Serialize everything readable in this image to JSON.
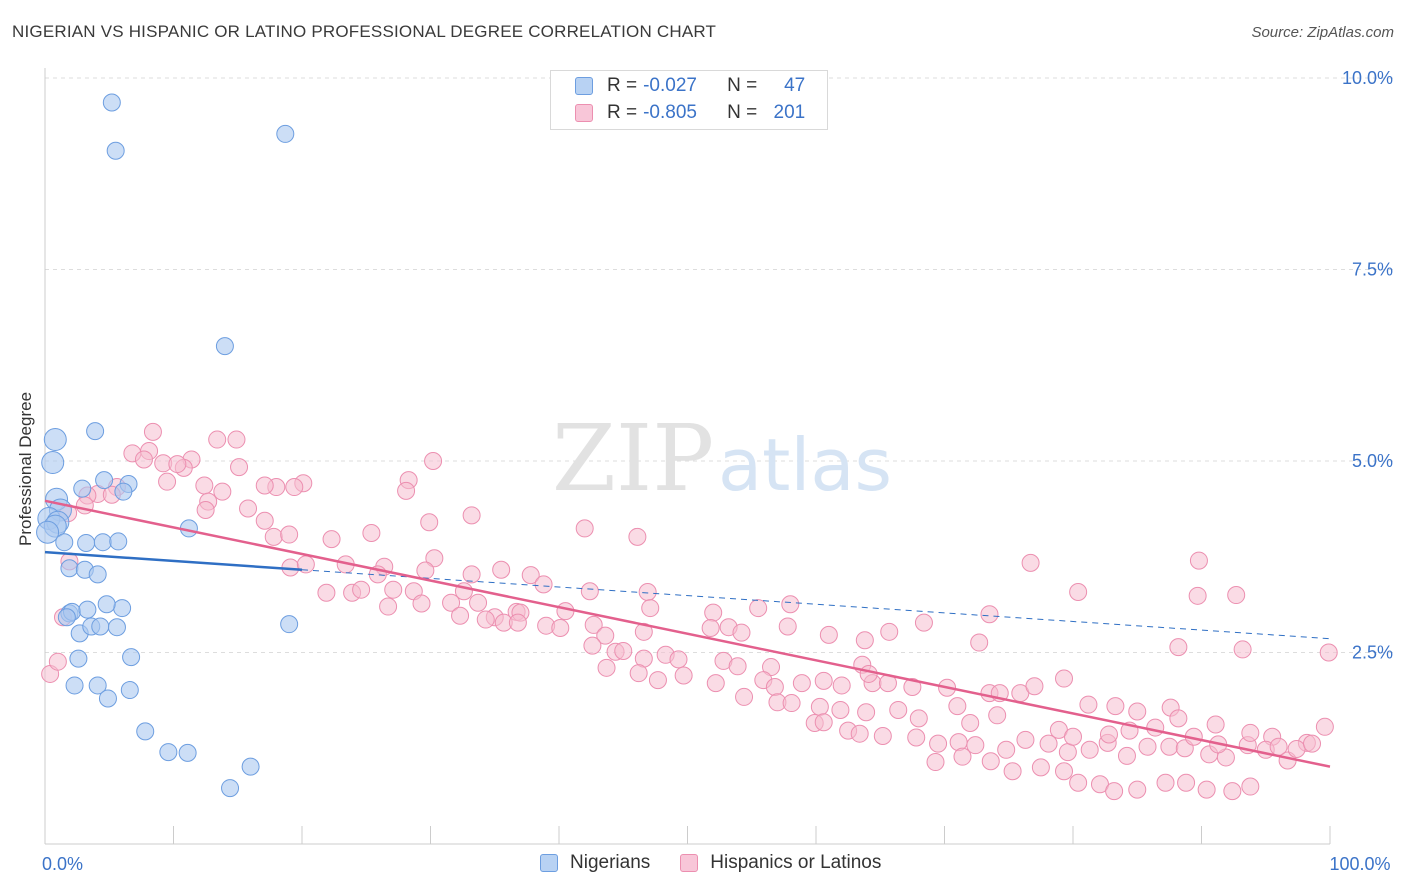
{
  "header": {
    "title": "NIGERIAN VS HISPANIC OR LATINO PROFESSIONAL DEGREE CORRELATION CHART",
    "source": "Source: ZipAtlas.com"
  },
  "watermark": {
    "zip": "ZIP",
    "atlas": "atlas"
  },
  "legend": {
    "rows": [
      {
        "r_label": "R =",
        "r_value": "-0.027",
        "n_label": "N =",
        "n_value": "47"
      },
      {
        "r_label": "R =",
        "r_value": "-0.805",
        "n_label": "N =",
        "n_value": "201"
      }
    ]
  },
  "bottom_legend": {
    "series1": "Nigerians",
    "series2": "Hispanics or Latinos"
  },
  "colors": {
    "blue_fill": "#aac8f0",
    "blue_stroke": "#6d9ee0",
    "blue_line": "#2f6fc4",
    "pink_fill": "#f6bdd0",
    "pink_stroke": "#ec8fb0",
    "pink_line": "#e3608d",
    "axis_text": "#3b73c8",
    "grid": "#dddddd"
  },
  "chart_data": {
    "type": "scatter",
    "title": "NIGERIAN VS HISPANIC OR LATINO PROFESSIONAL DEGREE CORRELATION CHART",
    "xlabel": "",
    "ylabel": "Professional Degree",
    "xlim": [
      0,
      100
    ],
    "ylim": [
      0,
      10
    ],
    "x_tick_labels": {
      "0": "0.0%",
      "100": "100.0%"
    },
    "y_ticks": [
      {
        "value": 2.5,
        "label": "2.5%"
      },
      {
        "value": 5.0,
        "label": "5.0%"
      },
      {
        "value": 7.5,
        "label": "7.5%"
      },
      {
        "value": 10.0,
        "label": "10.0%"
      }
    ],
    "series": [
      {
        "name": "Nigerians",
        "r": -0.027,
        "n": 47,
        "trend": {
          "x0": 0,
          "y0": 3.81,
          "x1": 20,
          "y1": 3.58,
          "dash_x1": 100,
          "dash_y1": 2.68
        },
        "points": [
          [
            5.2,
            9.68
          ],
          [
            5.5,
            9.05
          ],
          [
            18.7,
            9.27
          ],
          [
            14.0,
            6.5
          ],
          [
            3.9,
            5.39
          ],
          [
            0.8,
            5.28
          ],
          [
            0.6,
            4.98
          ],
          [
            4.6,
            4.75
          ],
          [
            6.5,
            4.7
          ],
          [
            0.9,
            4.5
          ],
          [
            2.9,
            4.64
          ],
          [
            6.1,
            4.6
          ],
          [
            1.2,
            4.36
          ],
          [
            0.3,
            4.25
          ],
          [
            1.0,
            4.2
          ],
          [
            0.8,
            4.15
          ],
          [
            11.2,
            4.12
          ],
          [
            0.2,
            4.07
          ],
          [
            1.5,
            3.94
          ],
          [
            3.2,
            3.93
          ],
          [
            4.5,
            3.94
          ],
          [
            5.7,
            3.95
          ],
          [
            1.9,
            3.6
          ],
          [
            3.1,
            3.58
          ],
          [
            4.1,
            3.52
          ],
          [
            1.9,
            3.01
          ],
          [
            2.1,
            3.03
          ],
          [
            3.3,
            3.06
          ],
          [
            6.0,
            3.08
          ],
          [
            1.7,
            2.96
          ],
          [
            4.8,
            3.13
          ],
          [
            2.7,
            2.75
          ],
          [
            3.6,
            2.84
          ],
          [
            4.3,
            2.84
          ],
          [
            5.6,
            2.83
          ],
          [
            19.0,
            2.87
          ],
          [
            2.6,
            2.42
          ],
          [
            6.7,
            2.44
          ],
          [
            2.3,
            2.07
          ],
          [
            4.1,
            2.07
          ],
          [
            6.6,
            2.01
          ],
          [
            4.9,
            1.9
          ],
          [
            7.8,
            1.47
          ],
          [
            9.6,
            1.2
          ],
          [
            11.1,
            1.19
          ],
          [
            16.0,
            1.01
          ],
          [
            14.4,
            0.73
          ]
        ]
      },
      {
        "name": "Hispanics or Latinos",
        "r": -0.805,
        "n": 201,
        "trend": {
          "x0": 0,
          "y0": 4.48,
          "x1": 100,
          "y1": 1.01
        },
        "points": [
          [
            8.4,
            5.38
          ],
          [
            13.4,
            5.28
          ],
          [
            14.9,
            5.28
          ],
          [
            6.8,
            5.1
          ],
          [
            8.1,
            5.13
          ],
          [
            7.7,
            5.02
          ],
          [
            11.4,
            5.02
          ],
          [
            9.2,
            4.97
          ],
          [
            10.8,
            4.91
          ],
          [
            10.3,
            4.96
          ],
          [
            15.1,
            4.92
          ],
          [
            20.1,
            4.71
          ],
          [
            18.0,
            4.66
          ],
          [
            17.1,
            4.68
          ],
          [
            9.5,
            4.73
          ],
          [
            12.4,
            4.68
          ],
          [
            5.6,
            4.66
          ],
          [
            4.1,
            4.57
          ],
          [
            5.2,
            4.56
          ],
          [
            3.3,
            4.55
          ],
          [
            19.4,
            4.66
          ],
          [
            13.8,
            4.6
          ],
          [
            28.3,
            4.75
          ],
          [
            30.2,
            5.0
          ],
          [
            28.1,
            4.61
          ],
          [
            12.7,
            4.47
          ],
          [
            3.1,
            4.42
          ],
          [
            12.5,
            4.36
          ],
          [
            15.8,
            4.38
          ],
          [
            1.8,
            4.32
          ],
          [
            29.9,
            4.2
          ],
          [
            33.2,
            4.29
          ],
          [
            17.1,
            4.22
          ],
          [
            22.3,
            3.98
          ],
          [
            25.4,
            4.06
          ],
          [
            17.8,
            4.01
          ],
          [
            19.0,
            4.04
          ],
          [
            1.9,
            3.69
          ],
          [
            30.3,
            3.73
          ],
          [
            19.1,
            3.61
          ],
          [
            20.3,
            3.65
          ],
          [
            26.4,
            3.62
          ],
          [
            33.2,
            3.52
          ],
          [
            35.5,
            3.58
          ],
          [
            32.6,
            3.3
          ],
          [
            23.4,
            3.65
          ],
          [
            25.9,
            3.52
          ],
          [
            29.6,
            3.57
          ],
          [
            42.0,
            4.12
          ],
          [
            46.1,
            4.01
          ],
          [
            37.8,
            3.51
          ],
          [
            38.8,
            3.39
          ],
          [
            42.4,
            3.3
          ],
          [
            46.9,
            3.29
          ],
          [
            21.9,
            3.28
          ],
          [
            23.9,
            3.28
          ],
          [
            24.6,
            3.32
          ],
          [
            27.1,
            3.32
          ],
          [
            28.7,
            3.3
          ],
          [
            26.7,
            3.1
          ],
          [
            29.3,
            3.14
          ],
          [
            31.6,
            3.15
          ],
          [
            33.7,
            3.15
          ],
          [
            35.0,
            2.96
          ],
          [
            36.7,
            3.03
          ],
          [
            37.0,
            3.02
          ],
          [
            32.3,
            2.98
          ],
          [
            34.3,
            2.93
          ],
          [
            35.7,
            2.89
          ],
          [
            36.8,
            2.89
          ],
          [
            40.5,
            3.04
          ],
          [
            47.1,
            3.08
          ],
          [
            52.0,
            3.02
          ],
          [
            55.5,
            3.08
          ],
          [
            58.0,
            3.13
          ],
          [
            68.4,
            2.89
          ],
          [
            76.7,
            3.67
          ],
          [
            80.4,
            3.29
          ],
          [
            73.5,
            3.0
          ],
          [
            89.8,
            3.7
          ],
          [
            89.7,
            3.24
          ],
          [
            92.7,
            3.25
          ],
          [
            39.0,
            2.85
          ],
          [
            40.1,
            2.82
          ],
          [
            42.7,
            2.86
          ],
          [
            43.6,
            2.72
          ],
          [
            46.6,
            2.77
          ],
          [
            51.8,
            2.82
          ],
          [
            53.2,
            2.83
          ],
          [
            54.2,
            2.76
          ],
          [
            57.8,
            2.84
          ],
          [
            61.0,
            2.73
          ],
          [
            65.7,
            2.77
          ],
          [
            63.8,
            2.66
          ],
          [
            72.7,
            2.63
          ],
          [
            88.2,
            2.57
          ],
          [
            93.2,
            2.54
          ],
          [
            99.9,
            2.5
          ],
          [
            42.6,
            2.59
          ],
          [
            44.4,
            2.51
          ],
          [
            45.0,
            2.52
          ],
          [
            48.3,
            2.47
          ],
          [
            46.6,
            2.42
          ],
          [
            49.3,
            2.41
          ],
          [
            52.8,
            2.39
          ],
          [
            53.9,
            2.32
          ],
          [
            56.5,
            2.31
          ],
          [
            63.6,
            2.34
          ],
          [
            43.7,
            2.3
          ],
          [
            46.2,
            2.23
          ],
          [
            47.7,
            2.14
          ],
          [
            49.7,
            2.2
          ],
          [
            52.2,
            2.1
          ],
          [
            55.9,
            2.14
          ],
          [
            56.8,
            2.05
          ],
          [
            58.9,
            2.1
          ],
          [
            62.0,
            2.07
          ],
          [
            64.4,
            2.1
          ],
          [
            65.6,
            2.1
          ],
          [
            54.4,
            1.92
          ],
          [
            57.0,
            1.85
          ],
          [
            58.1,
            1.84
          ],
          [
            60.3,
            1.79
          ],
          [
            61.9,
            1.75
          ],
          [
            63.9,
            1.72
          ],
          [
            66.4,
            1.75
          ],
          [
            68.0,
            1.64
          ],
          [
            71.0,
            1.8
          ],
          [
            73.5,
            1.97
          ],
          [
            74.3,
            1.97
          ],
          [
            75.9,
            1.97
          ],
          [
            77.0,
            2.06
          ],
          [
            79.3,
            2.16
          ],
          [
            81.2,
            1.82
          ],
          [
            83.3,
            1.8
          ],
          [
            85.0,
            1.73
          ],
          [
            87.6,
            1.78
          ],
          [
            88.2,
            1.64
          ],
          [
            91.1,
            1.56
          ],
          [
            95.5,
            1.4
          ],
          [
            59.9,
            1.58
          ],
          [
            60.6,
            1.59
          ],
          [
            62.5,
            1.48
          ],
          [
            63.4,
            1.44
          ],
          [
            65.2,
            1.41
          ],
          [
            67.8,
            1.39
          ],
          [
            69.5,
            1.31
          ],
          [
            71.1,
            1.33
          ],
          [
            72.4,
            1.29
          ],
          [
            74.8,
            1.23
          ],
          [
            76.3,
            1.36
          ],
          [
            78.1,
            1.31
          ],
          [
            79.6,
            1.2
          ],
          [
            81.3,
            1.23
          ],
          [
            82.7,
            1.32
          ],
          [
            84.2,
            1.15
          ],
          [
            85.8,
            1.27
          ],
          [
            87.5,
            1.27
          ],
          [
            88.7,
            1.25
          ],
          [
            90.6,
            1.17
          ],
          [
            91.9,
            1.13
          ],
          [
            93.6,
            1.29
          ],
          [
            95.0,
            1.23
          ],
          [
            96.7,
            1.09
          ],
          [
            98.2,
            1.32
          ],
          [
            69.3,
            1.07
          ],
          [
            71.4,
            1.14
          ],
          [
            73.6,
            1.08
          ],
          [
            75.3,
            0.95
          ],
          [
            77.5,
            1.0
          ],
          [
            79.3,
            0.95
          ],
          [
            80.4,
            0.8
          ],
          [
            82.1,
            0.78
          ],
          [
            83.2,
            0.69
          ],
          [
            85.0,
            0.71
          ],
          [
            87.2,
            0.8
          ],
          [
            88.8,
            0.8
          ],
          [
            90.4,
            0.71
          ],
          [
            92.4,
            0.69
          ],
          [
            93.8,
            0.75
          ],
          [
            96.0,
            1.27
          ],
          [
            97.4,
            1.24
          ],
          [
            98.6,
            1.31
          ],
          [
            0.4,
            2.22
          ],
          [
            1.0,
            2.38
          ],
          [
            1.4,
            2.96
          ],
          [
            60.6,
            2.13
          ],
          [
            64.1,
            2.22
          ],
          [
            67.5,
            2.05
          ],
          [
            70.2,
            2.04
          ],
          [
            72.0,
            1.58
          ],
          [
            74.1,
            1.68
          ],
          [
            78.9,
            1.49
          ],
          [
            80.0,
            1.4
          ],
          [
            82.8,
            1.43
          ],
          [
            84.4,
            1.48
          ],
          [
            86.4,
            1.52
          ],
          [
            89.4,
            1.4
          ],
          [
            91.3,
            1.3
          ],
          [
            93.8,
            1.45
          ],
          [
            99.6,
            1.53
          ]
        ]
      }
    ]
  }
}
